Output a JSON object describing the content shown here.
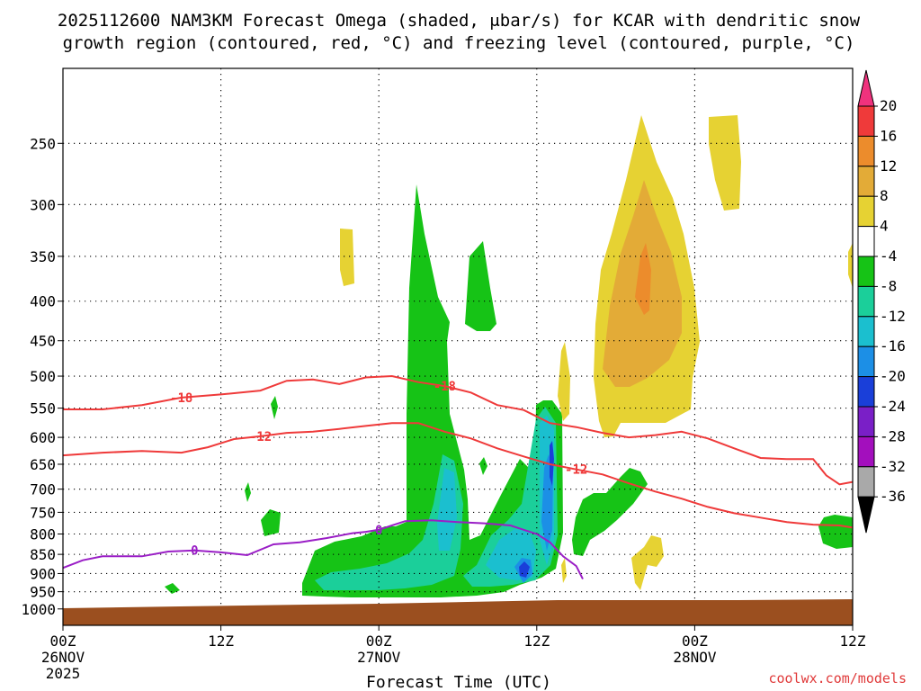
{
  "title_line1": "2025112600 NAM3KM Forecast Omega (shaded, μbar/s) for KCAR with dendritic snow",
  "title_line2": "growth region (contoured, red, °C) and freezing level (contoured, purple, °C)",
  "credit": "coolwx.com/models",
  "chart_data": {
    "type": "time-height cross section",
    "title": "2025112600 NAM3KM Forecast Omega (shaded, μbar/s) for KCAR with dendritic snow growth region (contoured, red, °C) and freezing level (contoured, purple, °C)",
    "xlabel": "Forecast Time (UTC)",
    "ylabel": "",
    "xlim_hours": [
      0,
      60
    ],
    "ylim_hpa": [
      1050,
      200
    ],
    "y_scale": "log-pressure",
    "grid": true,
    "x_ticks": [
      {
        "hour": 0,
        "line1": "00Z",
        "line2": "26NOV",
        "line3": "2025"
      },
      {
        "hour": 12,
        "line1": "12Z",
        "line2": "",
        "line3": ""
      },
      {
        "hour": 24,
        "line1": "00Z",
        "line2": "27NOV",
        "line3": ""
      },
      {
        "hour": 36,
        "line1": "12Z",
        "line2": "",
        "line3": ""
      },
      {
        "hour": 48,
        "line1": "00Z",
        "line2": "28NOV",
        "line3": ""
      },
      {
        "hour": 60,
        "line1": "12Z",
        "line2": "",
        "line3": ""
      }
    ],
    "y_ticks": [
      "250",
      "300",
      "350",
      "400",
      "450",
      "500",
      "550",
      "600",
      "650",
      "700",
      "750",
      "800",
      "850",
      "900",
      "950",
      "1000"
    ],
    "colorbar": {
      "labels": [
        "20",
        "16",
        "12",
        "8",
        "4",
        "-4",
        "-8",
        "-12",
        "-16",
        "-20",
        "-24",
        "-28",
        "-32",
        "-36"
      ],
      "colors": [
        "#f0327d",
        "#ef3a3a",
        "#ec8c2c",
        "#e3ab37",
        "#e6d233",
        "#ffffff",
        "#16c316",
        "#1bcf9a",
        "#1bbfcf",
        "#1c8fe6",
        "#1a3fd9",
        "#7a1fc7",
        "#a30fbd",
        "#a9a9a9",
        "#000000"
      ]
    },
    "freezing_level_contour": {
      "label": "0",
      "color": "#9a1ec6",
      "points": [
        [
          0,
          885
        ],
        [
          1.5,
          865
        ],
        [
          3,
          855
        ],
        [
          6,
          855
        ],
        [
          8,
          843
        ],
        [
          10,
          840
        ],
        [
          12,
          845
        ],
        [
          14,
          852
        ],
        [
          16,
          825
        ],
        [
          18,
          820
        ],
        [
          20,
          810
        ],
        [
          22,
          798
        ],
        [
          23,
          795
        ],
        [
          24,
          790
        ],
        [
          25,
          780
        ],
        [
          26,
          770
        ],
        [
          28,
          768
        ],
        [
          30,
          772
        ],
        [
          32,
          775
        ],
        [
          34,
          780
        ],
        [
          35,
          790
        ],
        [
          36,
          800
        ],
        [
          37,
          820
        ],
        [
          38,
          855
        ],
        [
          39,
          880
        ],
        [
          39.5,
          915
        ]
      ]
    },
    "contours_red": [
      {
        "label": "-18",
        "color": "#ef3a3a",
        "points": [
          [
            0,
            552
          ],
          [
            3,
            552
          ],
          [
            6,
            545
          ],
          [
            9,
            533
          ],
          [
            12,
            528
          ],
          [
            15,
            522
          ],
          [
            17,
            507
          ],
          [
            19,
            505
          ],
          [
            21,
            512
          ],
          [
            23,
            502
          ],
          [
            25,
            500
          ],
          [
            27,
            509
          ],
          [
            29,
            515
          ],
          [
            31,
            525
          ],
          [
            33,
            545
          ],
          [
            35,
            553
          ],
          [
            37,
            575
          ],
          [
            39,
            582
          ],
          [
            41,
            592
          ],
          [
            43,
            600
          ],
          [
            45,
            596
          ],
          [
            47,
            590
          ],
          [
            49,
            602
          ],
          [
            51,
            620
          ],
          [
            53,
            638
          ],
          [
            55,
            640
          ],
          [
            57,
            640
          ],
          [
            58,
            672
          ],
          [
            59,
            690
          ],
          [
            60,
            685
          ]
        ]
      },
      {
        "label": "-12",
        "color": "#ef3a3a",
        "points": [
          [
            0,
            633
          ],
          [
            3,
            628
          ],
          [
            6,
            625
          ],
          [
            9,
            628
          ],
          [
            11,
            618
          ],
          [
            13,
            603
          ],
          [
            15,
            598
          ],
          [
            17,
            592
          ],
          [
            19,
            590
          ],
          [
            21,
            585
          ],
          [
            23,
            580
          ],
          [
            25,
            575
          ],
          [
            27,
            575
          ],
          [
            29,
            590
          ],
          [
            31,
            602
          ],
          [
            33,
            620
          ],
          [
            35,
            635
          ],
          [
            37,
            650
          ],
          [
            39,
            660
          ],
          [
            41,
            670
          ],
          [
            43,
            688
          ],
          [
            45,
            705
          ],
          [
            47,
            720
          ],
          [
            49,
            738
          ],
          [
            51,
            752
          ],
          [
            53,
            762
          ],
          [
            55,
            772
          ],
          [
            57,
            778
          ],
          [
            59,
            780
          ],
          [
            60,
            785
          ]
        ]
      }
    ],
    "omega_regions_description": "Rising motion (negative omega, green to blue) concentrated 26NOV 18Z–27NOV 13Z from 950 up to about 300 hPa; sinking motion (positive omega, yellow to orange) 27NOV 17Z–28NOV 04Z between about 250 and 600 hPa, peaking near 12 μbar/s around 400 hPa."
  }
}
